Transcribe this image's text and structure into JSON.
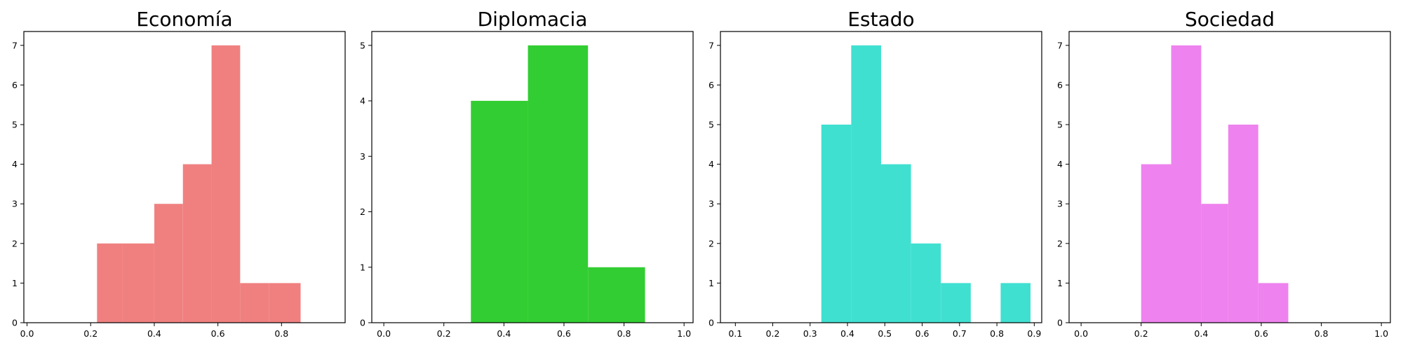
{
  "chart_data": [
    {
      "type": "bar",
      "title": "Economía",
      "color": "#F08080",
      "bins": [
        {
          "x0": 0.22,
          "x1": 0.3,
          "count": 2
        },
        {
          "x0": 0.3,
          "x1": 0.4,
          "count": 2
        },
        {
          "x0": 0.4,
          "x1": 0.49,
          "count": 3
        },
        {
          "x0": 0.49,
          "x1": 0.58,
          "count": 4
        },
        {
          "x0": 0.58,
          "x1": 0.67,
          "count": 7
        },
        {
          "x0": 0.67,
          "x1": 0.76,
          "count": 1
        },
        {
          "x0": 0.76,
          "x1": 0.86,
          "count": 1
        }
      ],
      "xlim": [
        -0.01,
        1.0
      ],
      "ylim": [
        0,
        7.35
      ],
      "xticks": [
        0.0,
        0.2,
        0.4,
        0.6,
        0.8
      ],
      "xtick_labels": [
        "0.0",
        "0.2",
        "0.4",
        "0.6",
        "0.8"
      ],
      "yticks": [
        0,
        1,
        2,
        3,
        4,
        5,
        6,
        7
      ],
      "ytick_labels": [
        "0",
        "1",
        "2",
        "3",
        "4",
        "5",
        "6",
        "7"
      ]
    },
    {
      "type": "bar",
      "title": "Diplomacia",
      "color": "#32CD32",
      "bins": [
        {
          "x0": 0.29,
          "x1": 0.48,
          "count": 4
        },
        {
          "x0": 0.48,
          "x1": 0.68,
          "count": 5
        },
        {
          "x0": 0.68,
          "x1": 0.87,
          "count": 1
        }
      ],
      "xlim": [
        -0.04,
        1.03
      ],
      "ylim": [
        0,
        5.25
      ],
      "xticks": [
        0.0,
        0.2,
        0.4,
        0.6,
        0.8,
        1.0
      ],
      "xtick_labels": [
        "0.0",
        "0.2",
        "0.4",
        "0.6",
        "0.8",
        "1.0"
      ],
      "yticks": [
        0,
        1,
        2,
        3,
        4,
        5
      ],
      "ytick_labels": [
        "0",
        "1",
        "2",
        "3",
        "4",
        "5"
      ]
    },
    {
      "type": "bar",
      "title": "Estado",
      "color": "#40E0D0",
      "bins": [
        {
          "x0": 0.33,
          "x1": 0.41,
          "count": 5
        },
        {
          "x0": 0.41,
          "x1": 0.49,
          "count": 7
        },
        {
          "x0": 0.49,
          "x1": 0.57,
          "count": 4
        },
        {
          "x0": 0.57,
          "x1": 0.65,
          "count": 2
        },
        {
          "x0": 0.65,
          "x1": 0.73,
          "count": 1
        },
        {
          "x0": 0.73,
          "x1": 0.81,
          "count": 0
        },
        {
          "x0": 0.81,
          "x1": 0.89,
          "count": 1
        }
      ],
      "xlim": [
        0.06,
        0.92
      ],
      "ylim": [
        0,
        7.35
      ],
      "xticks": [
        0.1,
        0.2,
        0.3,
        0.4,
        0.5,
        0.6,
        0.7,
        0.8,
        0.9
      ],
      "xtick_labels": [
        "0.1",
        "0.2",
        "0.3",
        "0.4",
        "0.5",
        "0.6",
        "0.7",
        "0.8",
        "0.9"
      ],
      "yticks": [
        0,
        1,
        2,
        3,
        4,
        5,
        6,
        7
      ],
      "ytick_labels": [
        "0",
        "1",
        "2",
        "3",
        "4",
        "5",
        "6",
        "7"
      ]
    },
    {
      "type": "bar",
      "title": "Sociedad",
      "color": "#EE82EE",
      "bins": [
        {
          "x0": 0.2,
          "x1": 0.3,
          "count": 4
        },
        {
          "x0": 0.3,
          "x1": 0.4,
          "count": 7
        },
        {
          "x0": 0.4,
          "x1": 0.49,
          "count": 3
        },
        {
          "x0": 0.49,
          "x1": 0.59,
          "count": 5
        },
        {
          "x0": 0.59,
          "x1": 0.69,
          "count": 1
        }
      ],
      "xlim": [
        -0.04,
        1.03
      ],
      "ylim": [
        0,
        7.35
      ],
      "xticks": [
        0.0,
        0.2,
        0.4,
        0.6,
        0.8,
        1.0
      ],
      "xtick_labels": [
        "0.0",
        "0.2",
        "0.4",
        "0.6",
        "0.8",
        "1.0"
      ],
      "yticks": [
        0,
        1,
        2,
        3,
        4,
        5,
        6,
        7
      ],
      "ytick_labels": [
        "0",
        "1",
        "2",
        "3",
        "4",
        "5",
        "6",
        "7"
      ]
    }
  ]
}
